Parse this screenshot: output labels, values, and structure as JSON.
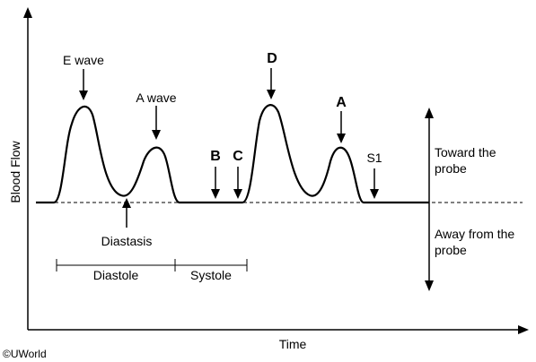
{
  "axes": {
    "x_label": "Time",
    "y_label": "Blood Flow"
  },
  "labels": {
    "e_wave": "E wave",
    "a_wave": "A wave",
    "diastasis": "Diastasis",
    "d": "D",
    "a": "A",
    "b": "B",
    "c": "C",
    "s1": "S1",
    "diastole": "Diastole",
    "systole": "Systole",
    "toward_line1": "Toward the",
    "toward_line2": "probe",
    "away_line1": "Away from the",
    "away_line2": "probe"
  },
  "copyright": "©UWorld"
}
